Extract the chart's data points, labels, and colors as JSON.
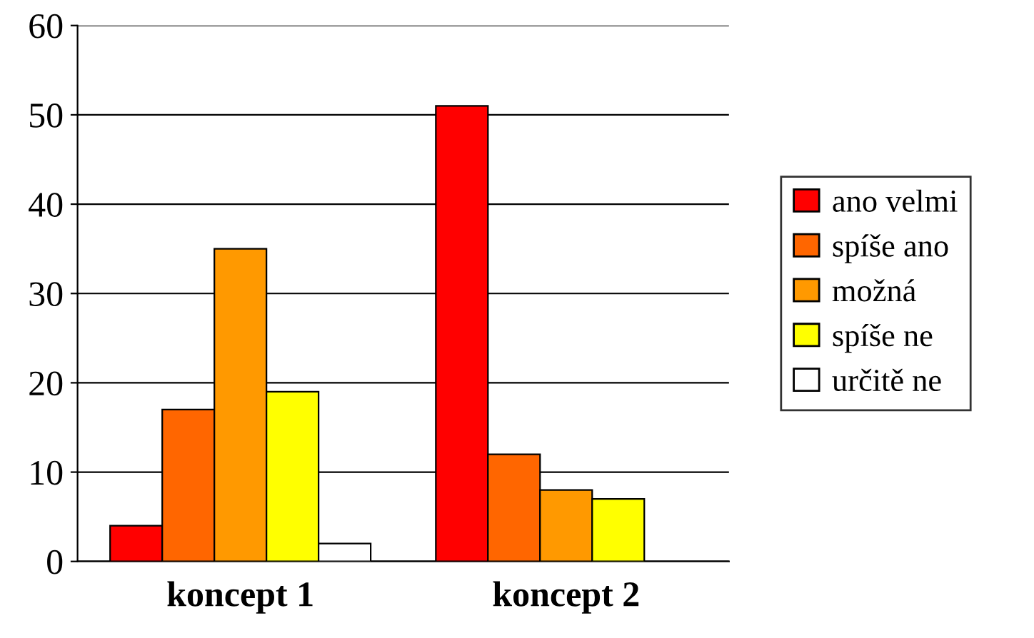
{
  "chart_data": {
    "type": "bar",
    "categories": [
      "koncept 1",
      "koncept 2"
    ],
    "series": [
      {
        "name": "ano velmi",
        "color": "#ff0000",
        "values": [
          4,
          51
        ]
      },
      {
        "name": "spíše ano",
        "color": "#ff6600",
        "values": [
          17,
          12
        ]
      },
      {
        "name": "možná",
        "color": "#ff9900",
        "values": [
          35,
          8
        ]
      },
      {
        "name": "spíše ne",
        "color": "#ffff00",
        "values": [
          19,
          7
        ]
      },
      {
        "name": "určitě ne",
        "color": "#ffffff",
        "values": [
          2,
          0
        ]
      }
    ],
    "ylim": [
      0,
      60
    ],
    "yticks": [
      0,
      10,
      20,
      30,
      40,
      50,
      60
    ],
    "grid": "y",
    "legend": "right"
  }
}
